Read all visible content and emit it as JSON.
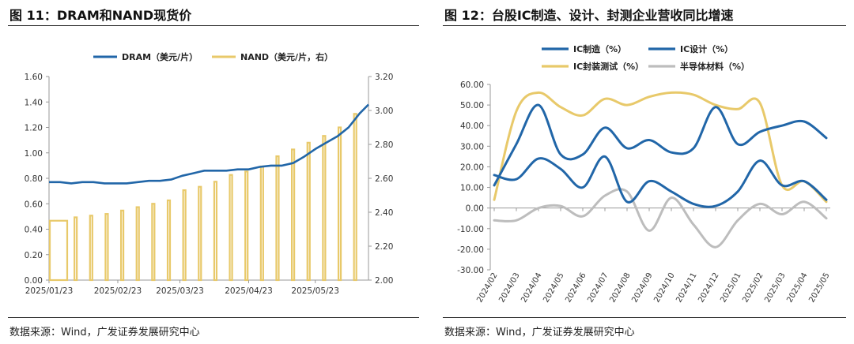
{
  "colors": {
    "blue": "#2166a8",
    "gold": "#e8c96a",
    "gray": "#bdbdbd",
    "axis": "#999999"
  },
  "left": {
    "title": "图 11：DRAM和NAND现货价",
    "source": "数据来源：Wind，广发证券发展研究中心"
  },
  "right": {
    "title": "图 12：台股IC制造、设计、封测企业营收同比增速",
    "source": "数据来源：Wind，广发证券发展研究中心"
  },
  "chart_data": [
    {
      "type": "line+bar",
      "y_left": {
        "ylim": [
          0,
          1.6
        ],
        "ticks": [
          "0.00",
          "0.20",
          "0.40",
          "0.60",
          "0.80",
          "1.00",
          "1.20",
          "1.40",
          "1.60"
        ]
      },
      "y_right": {
        "ylim": [
          2.0,
          3.2
        ],
        "ticks": [
          "2.00",
          "2.20",
          "2.40",
          "2.60",
          "2.80",
          "3.00",
          "3.20"
        ]
      },
      "x_range": [
        "2025/01/23",
        "2025/06/16"
      ],
      "x_ticks": [
        "2025/01/23",
        "2025/02/23",
        "2025/03/23",
        "2025/04/23",
        "2025/05/23"
      ],
      "legend_position": "top",
      "series": [
        {
          "name": "DRAM（美元/片）",
          "kind": "line",
          "axis": "left",
          "x": [
            "2025/01/23",
            "2025/01/28",
            "2025/02/02",
            "2025/02/07",
            "2025/02/12",
            "2025/02/17",
            "2025/02/22",
            "2025/02/27",
            "2025/03/04",
            "2025/03/09",
            "2025/03/14",
            "2025/03/19",
            "2025/03/24",
            "2025/03/29",
            "2025/04/03",
            "2025/04/08",
            "2025/04/13",
            "2025/04/18",
            "2025/04/23",
            "2025/04/28",
            "2025/05/03",
            "2025/05/08",
            "2025/05/13",
            "2025/05/18",
            "2025/05/23",
            "2025/05/28",
            "2025/06/02",
            "2025/06/07",
            "2025/06/12",
            "2025/06/16"
          ],
          "values": [
            0.77,
            0.77,
            0.76,
            0.77,
            0.77,
            0.76,
            0.76,
            0.76,
            0.77,
            0.78,
            0.78,
            0.79,
            0.82,
            0.84,
            0.86,
            0.86,
            0.86,
            0.87,
            0.87,
            0.89,
            0.9,
            0.9,
            0.92,
            0.97,
            1.03,
            1.08,
            1.13,
            1.2,
            1.31,
            1.38
          ]
        },
        {
          "name": "NAND（美元/片，右）",
          "kind": "bar",
          "axis": "right",
          "x": [
            "2025/01/23",
            "2025/02/04",
            "2025/02/11",
            "2025/02/18",
            "2025/02/25",
            "2025/03/04",
            "2025/03/11",
            "2025/03/18",
            "2025/03/25",
            "2025/04/01",
            "2025/04/08",
            "2025/04/15",
            "2025/04/22",
            "2025/04/29",
            "2025/05/06",
            "2025/05/13",
            "2025/05/20",
            "2025/05/27",
            "2025/06/03",
            "2025/06/10"
          ],
          "values": [
            2.35,
            2.37,
            2.38,
            2.39,
            2.41,
            2.43,
            2.45,
            2.47,
            2.53,
            2.55,
            2.58,
            2.62,
            2.64,
            2.67,
            2.73,
            2.77,
            2.81,
            2.85,
            2.9,
            2.98
          ]
        }
      ]
    },
    {
      "type": "line",
      "x": [
        "2024/02",
        "2024/03",
        "2024/04",
        "2024/05",
        "2024/06",
        "2024/07",
        "2024/08",
        "2024/09",
        "2024/10",
        "2024/11",
        "2024/12",
        "2025/01",
        "2025/02",
        "2025/03",
        "2025/04",
        "2025/05"
      ],
      "ylim": [
        -30,
        60
      ],
      "y_ticks": [
        "-30.00",
        "-20.00",
        "-10.00",
        "0.00",
        "10.00",
        "20.00",
        "30.00",
        "40.00",
        "50.00",
        "60.00"
      ],
      "legend_position": "top",
      "series": [
        {
          "name": "IC制造（%）",
          "color_key": "blue",
          "values": [
            16,
            14,
            24,
            19,
            10,
            25,
            3,
            13,
            8,
            2,
            1,
            8,
            23,
            11,
            13,
            4
          ]
        },
        {
          "name": "IC设计（%）",
          "color_key": "blue",
          "values": [
            11,
            31,
            50,
            26,
            26,
            39,
            29,
            33,
            27,
            29,
            49,
            31,
            37,
            40,
            42,
            34
          ]
        },
        {
          "name": "IC封装测试（%）",
          "color_key": "gold",
          "values": [
            4,
            47,
            56,
            49,
            45,
            53,
            50,
            54,
            56,
            55,
            50,
            48,
            51,
            11,
            13,
            3
          ]
        },
        {
          "name": "半导体材料（%）",
          "color_key": "gray",
          "values": [
            -6,
            -6,
            0,
            1,
            -4,
            6,
            8,
            -11,
            5,
            -8,
            -19,
            -6,
            2,
            -3,
            3,
            -5
          ]
        }
      ]
    }
  ]
}
